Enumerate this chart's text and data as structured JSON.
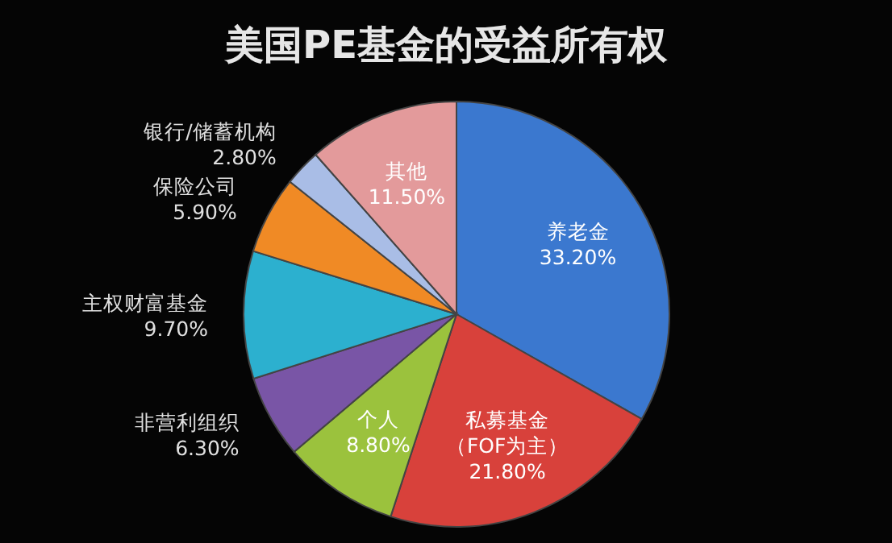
{
  "chart_data": {
    "type": "pie",
    "title": "美国PE基金的受益所有权",
    "categories": [
      "养老金",
      "私募基金（FOF为主）",
      "个人",
      "非营利组织",
      "主权财富基金",
      "保险公司",
      "银行/储蓄机构",
      "其他"
    ],
    "values": [
      33.2,
      21.8,
      8.8,
      6.3,
      9.7,
      5.9,
      2.8,
      11.5
    ],
    "value_labels": [
      "33.20%",
      "21.80%",
      "8.80%",
      "6.30%",
      "9.70%",
      "5.90%",
      "2.80%",
      "11.50%"
    ],
    "colors": [
      "#3b78cf",
      "#d8413b",
      "#9bc23d",
      "#7955a6",
      "#2cb0cf",
      "#f08a25",
      "#a9bde6",
      "#e39a9b"
    ]
  }
}
